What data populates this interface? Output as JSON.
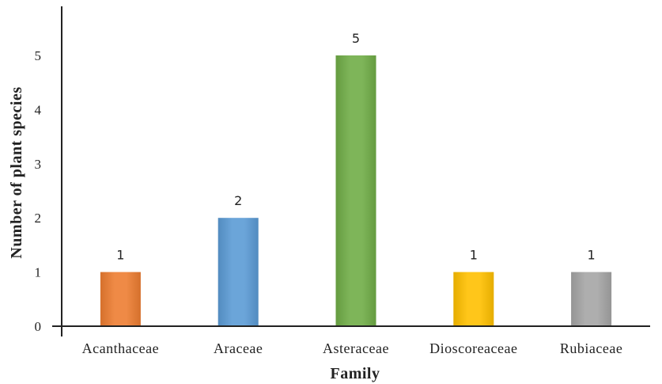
{
  "chart_data": {
    "type": "bar",
    "title": "",
    "xlabel": "Family",
    "ylabel": "Number of plant species",
    "categories": [
      "Acanthaceae",
      "Araceae",
      "Asteraceae",
      "Dioscoreaceae",
      "Rubiaceae"
    ],
    "values": [
      1,
      2,
      5,
      1,
      1
    ],
    "colors": [
      "#ED7D31",
      "#5B9BD5",
      "#70AD47",
      "#FFC000",
      "#A5A5A5"
    ],
    "ylim": [
      0,
      5
    ],
    "yticks": [
      "0",
      "1",
      "2",
      "3",
      "4",
      "5"
    ],
    "data_labels": [
      "1",
      "2",
      "5",
      "1",
      "1"
    ],
    "grid": false,
    "legend": "none"
  }
}
